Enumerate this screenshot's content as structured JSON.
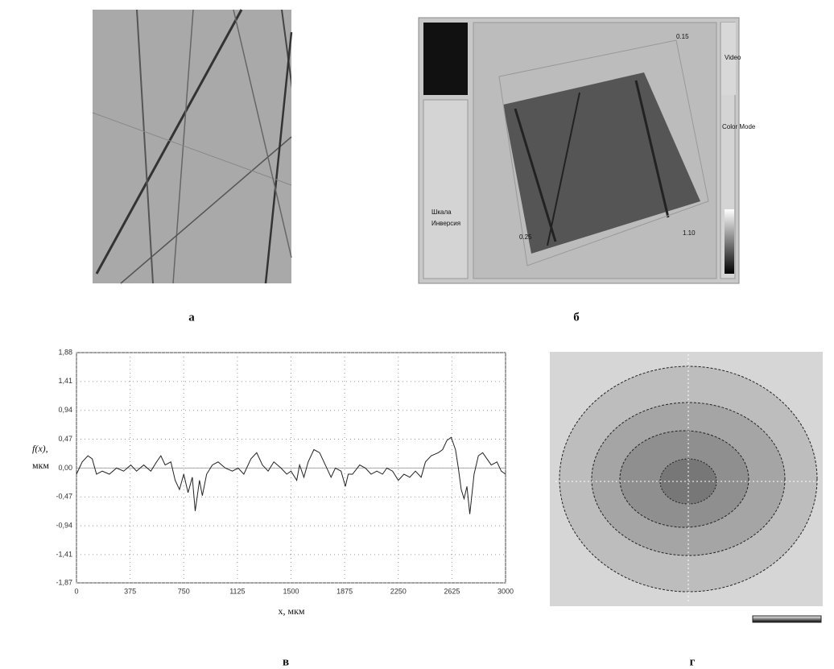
{
  "panels": {
    "a": {
      "caption": "а"
    },
    "b": {
      "caption": "б",
      "labels": [
        "Video",
        "Color Mode",
        "Шкала",
        "Инверсия"
      ],
      "axis_labels": [
        "0.15",
        "1.10",
        "0.25"
      ]
    },
    "c": {
      "caption": "в"
    },
    "d": {
      "caption": "г"
    }
  },
  "chart_data": {
    "type": "line",
    "ylabel": "f(x),",
    "ylabel_unit": "мкм",
    "xlabel": "x, мкм",
    "color": "#222",
    "grid": true,
    "xlim": [
      0,
      3000
    ],
    "ylim": [
      -1.87,
      1.88
    ],
    "xticks": [
      0,
      375,
      750,
      1125,
      1500,
      1875,
      2250,
      2625,
      3000
    ],
    "yticks": [
      {
        "value": 1.88,
        "label": "1,88"
      },
      {
        "value": 1.41,
        "label": "1,41"
      },
      {
        "value": 0.94,
        "label": "0,94"
      },
      {
        "value": 0.47,
        "label": "0,47"
      },
      {
        "value": 0,
        "label": "0,00"
      },
      {
        "value": -0.47,
        "label": "-0,47"
      },
      {
        "value": -0.94,
        "label": "-0,94"
      },
      {
        "value": -1.41,
        "label": "-1,41"
      },
      {
        "value": -1.87,
        "label": "-1,87"
      }
    ],
    "x": [
      0,
      40,
      80,
      110,
      140,
      180,
      230,
      280,
      330,
      380,
      420,
      470,
      520,
      560,
      590,
      620,
      660,
      690,
      720,
      750,
      780,
      810,
      830,
      860,
      880,
      910,
      950,
      990,
      1040,
      1090,
      1130,
      1170,
      1220,
      1260,
      1300,
      1340,
      1380,
      1430,
      1470,
      1500,
      1540,
      1560,
      1590,
      1620,
      1660,
      1700,
      1740,
      1780,
      1810,
      1850,
      1880,
      1900,
      1930,
      1980,
      2020,
      2060,
      2100,
      2140,
      2170,
      2210,
      2250,
      2290,
      2330,
      2370,
      2410,
      2440,
      2480,
      2530,
      2560,
      2590,
      2620,
      2650,
      2670,
      2690,
      2710,
      2730,
      2750,
      2780,
      2810,
      2840,
      2870,
      2900,
      2940,
      2970,
      3000
    ],
    "values": [
      -0.1,
      0.1,
      0.2,
      0.15,
      -0.1,
      -0.05,
      -0.1,
      0,
      -0.05,
      0.05,
      -0.05,
      0.05,
      -0.05,
      0.1,
      0.2,
      0.05,
      0.1,
      -0.2,
      -0.35,
      -0.1,
      -0.4,
      -0.15,
      -0.7,
      -0.2,
      -0.45,
      -0.1,
      0.05,
      0.1,
      0,
      -0.05,
      0,
      -0.1,
      0.15,
      0.25,
      0.05,
      -0.05,
      0.1,
      0,
      -0.1,
      -0.05,
      -0.2,
      0.05,
      -0.15,
      0.1,
      0.3,
      0.25,
      0.05,
      -0.15,
      0,
      -0.05,
      -0.3,
      -0.1,
      -0.1,
      0.05,
      0,
      -0.1,
      -0.05,
      -0.1,
      0,
      -0.05,
      -0.2,
      -0.1,
      -0.15,
      -0.05,
      -0.15,
      0.1,
      0.2,
      0.25,
      0.3,
      0.45,
      0.5,
      0.3,
      0,
      -0.35,
      -0.5,
      -0.3,
      -0.75,
      -0.1,
      0.2,
      0.25,
      0.15,
      0.05,
      0.1,
      -0.05,
      -0.1
    ]
  }
}
